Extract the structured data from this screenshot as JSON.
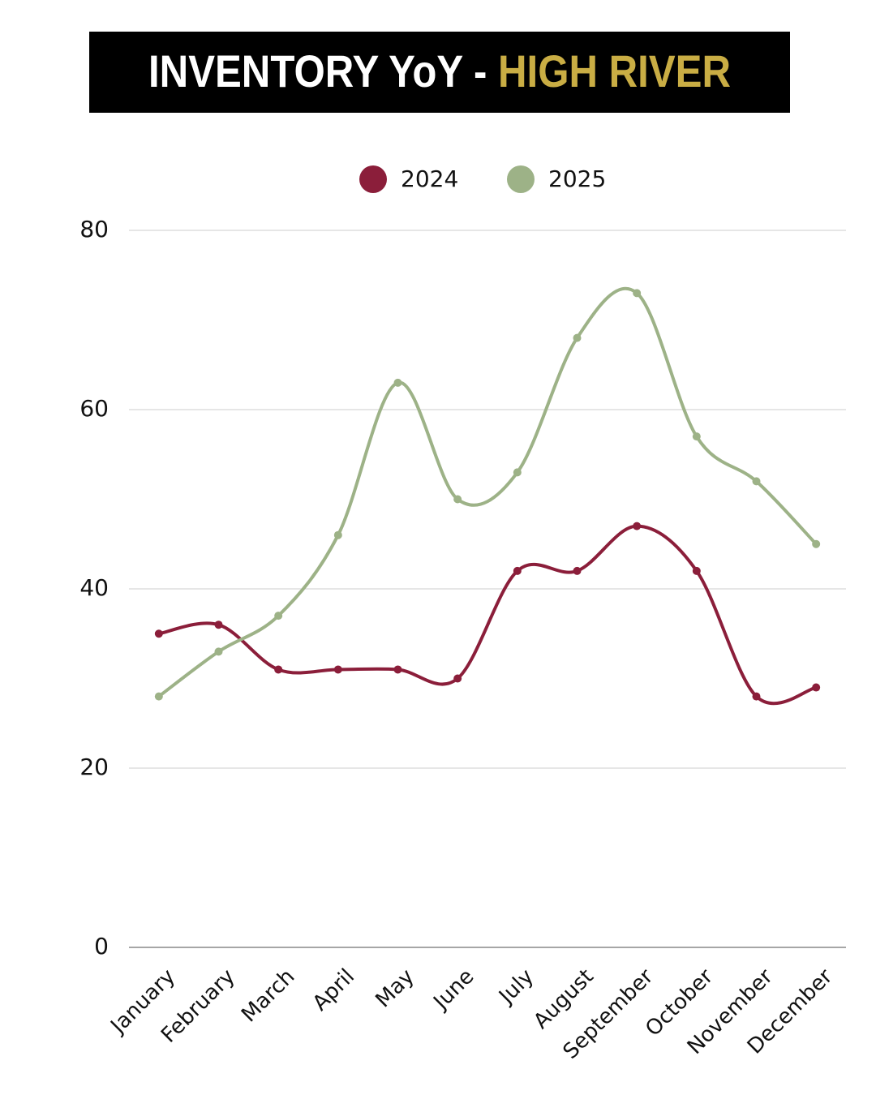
{
  "chart_data": {
    "type": "line",
    "title": "INVENTORY YoY -",
    "title_highlight": "HIGH RIVER",
    "categories": [
      "January",
      "February",
      "March",
      "April",
      "May",
      "June",
      "July",
      "August",
      "September",
      "October",
      "November",
      "December"
    ],
    "series": [
      {
        "name": "2024",
        "color": "#8b1e3a",
        "values": [
          35,
          36,
          31,
          31,
          31,
          30,
          42,
          42,
          47,
          42,
          28,
          29
        ]
      },
      {
        "name": "2025",
        "color": "#9db287",
        "values": [
          28,
          33,
          37,
          46,
          63,
          50,
          53,
          68,
          73,
          57,
          52,
          45
        ]
      }
    ],
    "ylim": [
      0,
      80
    ],
    "yticks": [
      0,
      20,
      40,
      60,
      80
    ],
    "grid": true,
    "smooth": true,
    "legend": "top"
  }
}
